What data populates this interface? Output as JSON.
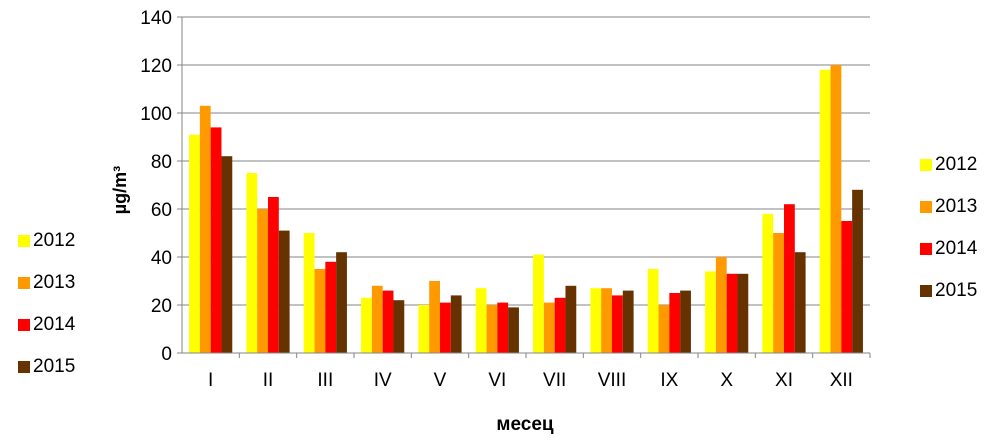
{
  "chart_data": {
    "type": "bar",
    "title": "",
    "xlabel": "месец",
    "ylabel": "µg/m³",
    "ylim": [
      0,
      140
    ],
    "yticks": [
      0,
      20,
      40,
      60,
      80,
      100,
      120,
      140
    ],
    "grid": "horizontal",
    "legend_placement": "right",
    "categories": [
      "I",
      "II",
      "III",
      "IV",
      "V",
      "VI",
      "VII",
      "VIII",
      "IX",
      "X",
      "XI",
      "XII"
    ],
    "series": [
      {
        "name": "2012",
        "color": "#ffff00",
        "values": [
          91,
          75,
          50,
          23,
          20,
          27,
          41,
          27,
          35,
          34,
          58,
          118
        ]
      },
      {
        "name": "2013",
        "color": "#ff9900",
        "values": [
          103,
          60,
          35,
          28,
          30,
          20,
          21,
          27,
          20,
          40,
          50,
          120
        ]
      },
      {
        "name": "2014",
        "color": "#ff0000",
        "values": [
          94,
          65,
          38,
          26,
          21,
          21,
          23,
          24,
          25,
          33,
          62,
          55
        ]
      },
      {
        "name": "2015",
        "color": "#663300",
        "values": [
          82,
          51,
          42,
          22,
          24,
          19,
          28,
          26,
          26,
          33,
          42,
          68
        ]
      }
    ]
  }
}
